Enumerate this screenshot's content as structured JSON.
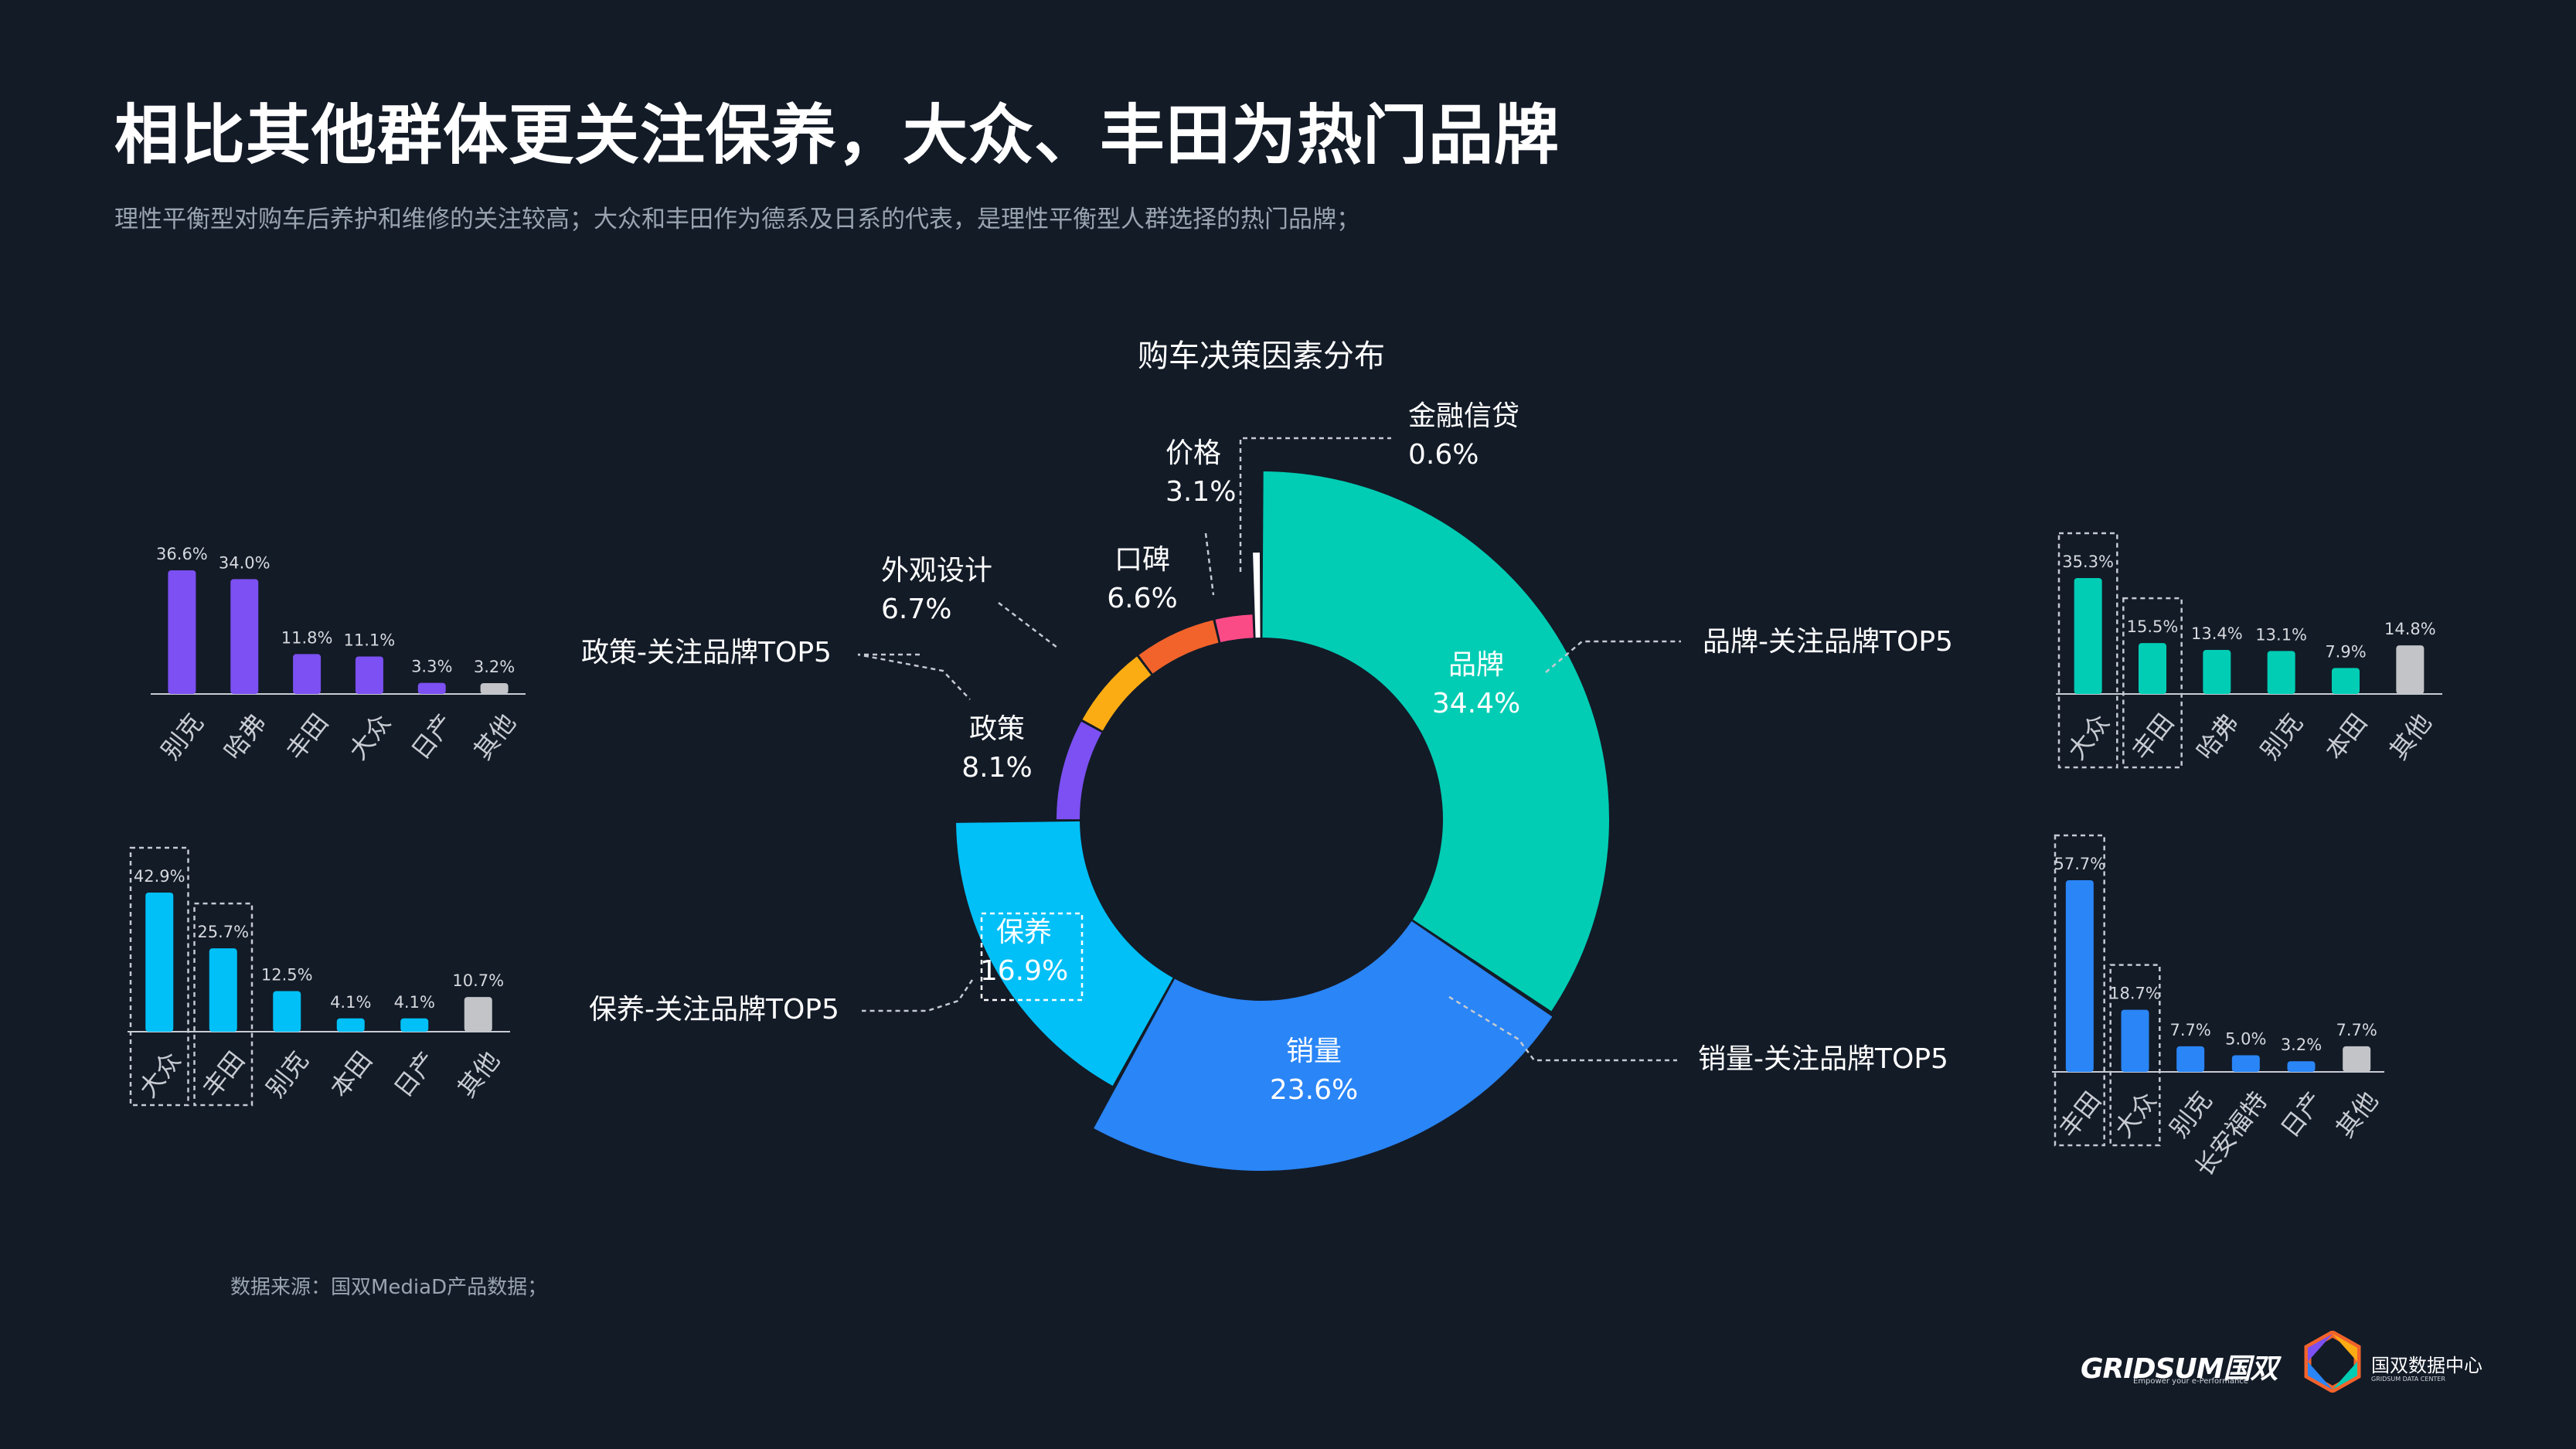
{
  "page": {
    "title": "相比其他群体更关注保养，大众、丰田为热门品牌",
    "subtitle": "理性平衡型对购车后养护和维修的关注较高；大众和丰田作为德系及日系的代表，是理性平衡型人群选择的热门品牌；",
    "source": "数据来源：国双MediaD产品数据；"
  },
  "logos": {
    "gridsum": "GRIDSUM国双",
    "gridsum_tagline": "Empower your e-Performance",
    "datacenter_name": "国双数据中心",
    "datacenter_en": "GRIDSUM DATA CENTER"
  },
  "colors": {
    "background": "#131b27",
    "brand": "#00cdb4",
    "sales": "#2a85f6",
    "maintenance": "#00c0f7",
    "policy": "#7c50f2",
    "design": "#fcac13",
    "reputation": "#f2632b",
    "price": "#fb4b87",
    "finance": "#ffffff",
    "other_bar": "#c2c4c8",
    "axis": "#c8ccd2",
    "leader": "#c5cad2"
  },
  "chart_data": [
    {
      "id": "donut",
      "type": "pie",
      "title": "购车决策因素分布",
      "slices": [
        {
          "label": "品牌",
          "value": 34.4,
          "display": "34.4%",
          "color": "#00cdb4"
        },
        {
          "label": "销量",
          "value": 23.6,
          "display": "23.6%",
          "color": "#2a85f6"
        },
        {
          "label": "保养",
          "value": 16.9,
          "display": "16.9%",
          "color": "#00c0f7"
        },
        {
          "label": "政策",
          "value": 8.1,
          "display": "8.1%",
          "color": "#7c50f2"
        },
        {
          "label": "外观设计",
          "value": 6.7,
          "display": "6.7%",
          "color": "#fcac13"
        },
        {
          "label": "口碑",
          "value": 6.6,
          "display": "6.6%",
          "color": "#f2632b"
        },
        {
          "label": "价格",
          "value": 3.1,
          "display": "3.1%",
          "color": "#fb4b87"
        },
        {
          "label": "金融信贷",
          "value": 0.6,
          "display": "0.6%",
          "color": "#ffffff"
        }
      ]
    },
    {
      "id": "policy-top5",
      "type": "bar",
      "title": "政策-关注品牌TOP5",
      "categories": [
        "别克",
        "哈弗",
        "丰田",
        "大众",
        "日产",
        "其他"
      ],
      "values": [
        36.6,
        34.0,
        11.8,
        11.1,
        3.3,
        3.2
      ],
      "labels": [
        "36.6%",
        "34.0%",
        "11.8%",
        "11.1%",
        "3.3%",
        "3.2%"
      ],
      "color": "#7c50f2",
      "highlight": []
    },
    {
      "id": "maintenance-top5",
      "type": "bar",
      "title": "保养-关注品牌TOP5",
      "categories": [
        "大众",
        "丰田",
        "别克",
        "本田",
        "日产",
        "其他"
      ],
      "values": [
        42.9,
        25.7,
        12.5,
        4.1,
        4.1,
        10.7
      ],
      "labels": [
        "42.9%",
        "25.7%",
        "12.5%",
        "4.1%",
        "4.1%",
        "10.7%"
      ],
      "color": "#00c0f7",
      "highlight": [
        0,
        1
      ]
    },
    {
      "id": "brand-top5",
      "type": "bar",
      "title": "品牌-关注品牌TOP5",
      "categories": [
        "大众",
        "丰田",
        "哈弗",
        "别克",
        "本田",
        "其他"
      ],
      "values": [
        35.3,
        15.5,
        13.4,
        13.1,
        7.9,
        14.8
      ],
      "labels": [
        "35.3%",
        "15.5%",
        "13.4%",
        "13.1%",
        "7.9%",
        "14.8%"
      ],
      "color": "#00cdb4",
      "highlight": [
        0,
        1
      ]
    },
    {
      "id": "sales-top5",
      "type": "bar",
      "title": "销量-关注品牌TOP5",
      "categories": [
        "丰田",
        "大众",
        "别克",
        "长安福特",
        "日产",
        "其他"
      ],
      "values": [
        57.7,
        18.7,
        7.7,
        5.0,
        3.2,
        7.7
      ],
      "labels": [
        "57.7%",
        "18.7%",
        "7.7%",
        "5.0%",
        "3.2%",
        "7.7%"
      ],
      "color": "#2a85f6",
      "highlight": [
        0,
        1
      ]
    }
  ]
}
